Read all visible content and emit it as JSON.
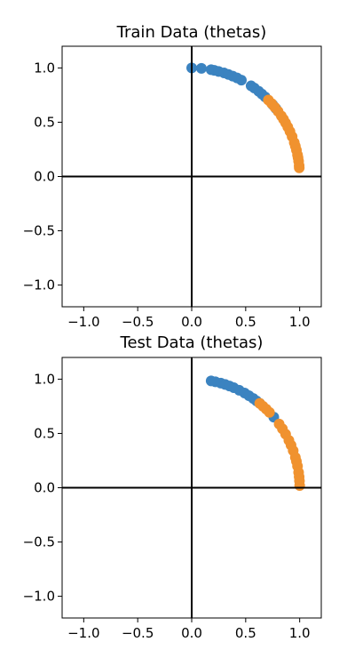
{
  "chart_data": [
    {
      "type": "scatter",
      "title": "Train Data (thetas)",
      "xlabel": "",
      "ylabel": "",
      "xlim": [
        -1.2,
        1.2
      ],
      "ylim": [
        -1.2,
        1.2
      ],
      "xticks": [
        -1.0,
        -0.5,
        0.0,
        0.5,
        1.0
      ],
      "yticks": [
        -1.0,
        -0.5,
        0.0,
        0.5,
        1.0
      ],
      "xtick_labels": [
        "−1.0",
        "−0.5",
        "0.0",
        "0.5",
        "1.0"
      ],
      "ytick_labels": [
        "−1.0",
        "−0.5",
        "0.0",
        "0.5",
        "1.0"
      ],
      "grid": false,
      "reference_lines": {
        "x": 0,
        "y": 0
      },
      "series": [
        {
          "color": "#3b83c0",
          "points": [
            {
              "x": 0.0,
              "y": 1.0
            },
            {
              "x": 0.09,
              "y": 0.996
            },
            {
              "x": 0.18,
              "y": 0.984
            },
            {
              "x": 0.21,
              "y": 0.978
            },
            {
              "x": 0.25,
              "y": 0.968
            },
            {
              "x": 0.3,
              "y": 0.954
            },
            {
              "x": 0.34,
              "y": 0.94
            },
            {
              "x": 0.38,
              "y": 0.925
            },
            {
              "x": 0.42,
              "y": 0.908
            },
            {
              "x": 0.46,
              "y": 0.888
            },
            {
              "x": 0.55,
              "y": 0.835
            },
            {
              "x": 0.58,
              "y": 0.815
            },
            {
              "x": 0.62,
              "y": 0.785
            },
            {
              "x": 0.65,
              "y": 0.76
            },
            {
              "x": 0.68,
              "y": 0.733
            },
            {
              "x": 0.75,
              "y": 0.661
            },
            {
              "x": 0.78,
              "y": 0.626
            }
          ]
        },
        {
          "color": "#f0922f",
          "points": [
            {
              "x": 0.71,
              "y": 0.704
            },
            {
              "x": 0.74,
              "y": 0.673
            },
            {
              "x": 0.77,
              "y": 0.638
            },
            {
              "x": 0.8,
              "y": 0.6
            },
            {
              "x": 0.83,
              "y": 0.558
            },
            {
              "x": 0.85,
              "y": 0.527
            },
            {
              "x": 0.87,
              "y": 0.493
            },
            {
              "x": 0.89,
              "y": 0.456
            },
            {
              "x": 0.91,
              "y": 0.415
            },
            {
              "x": 0.93,
              "y": 0.368
            },
            {
              "x": 0.95,
              "y": 0.312
            },
            {
              "x": 0.96,
              "y": 0.28
            },
            {
              "x": 0.97,
              "y": 0.243
            },
            {
              "x": 0.98,
              "y": 0.199
            },
            {
              "x": 0.985,
              "y": 0.173
            },
            {
              "x": 0.99,
              "y": 0.141
            },
            {
              "x": 0.995,
              "y": 0.1
            },
            {
              "x": 0.996,
              "y": 0.08
            }
          ]
        }
      ]
    },
    {
      "type": "scatter",
      "title": "Test Data (thetas)",
      "xlabel": "",
      "ylabel": "",
      "xlim": [
        -1.2,
        1.2
      ],
      "ylim": [
        -1.2,
        1.2
      ],
      "xticks": [
        -1.0,
        -0.5,
        0.0,
        0.5,
        1.0
      ],
      "yticks": [
        -1.0,
        -0.5,
        0.0,
        0.5,
        1.0
      ],
      "xtick_labels": [
        "−1.0",
        "−0.5",
        "0.0",
        "0.5",
        "1.0"
      ],
      "ytick_labels": [
        "−1.0",
        "−0.5",
        "0.0",
        "0.5",
        "1.0"
      ],
      "grid": false,
      "reference_lines": {
        "x": 0,
        "y": 0
      },
      "series": [
        {
          "color": "#3b83c0",
          "points": [
            {
              "x": 0.18,
              "y": 0.984
            },
            {
              "x": 0.22,
              "y": 0.976
            },
            {
              "x": 0.27,
              "y": 0.963
            },
            {
              "x": 0.31,
              "y": 0.951
            },
            {
              "x": 0.35,
              "y": 0.937
            },
            {
              "x": 0.39,
              "y": 0.921
            },
            {
              "x": 0.44,
              "y": 0.898
            },
            {
              "x": 0.49,
              "y": 0.872
            },
            {
              "x": 0.53,
              "y": 0.848
            },
            {
              "x": 0.57,
              "y": 0.822
            },
            {
              "x": 0.6,
              "y": 0.8
            },
            {
              "x": 0.63,
              "y": 0.777
            },
            {
              "x": 0.76,
              "y": 0.65
            }
          ]
        },
        {
          "color": "#f0922f",
          "points": [
            {
              "x": 0.63,
              "y": 0.777
            },
            {
              "x": 0.66,
              "y": 0.751
            },
            {
              "x": 0.69,
              "y": 0.724
            },
            {
              "x": 0.72,
              "y": 0.694
            },
            {
              "x": 0.81,
              "y": 0.587
            },
            {
              "x": 0.84,
              "y": 0.543
            },
            {
              "x": 0.87,
              "y": 0.493
            },
            {
              "x": 0.9,
              "y": 0.436
            },
            {
              "x": 0.92,
              "y": 0.392
            },
            {
              "x": 0.94,
              "y": 0.341
            },
            {
              "x": 0.96,
              "y": 0.28
            },
            {
              "x": 0.97,
              "y": 0.243
            },
            {
              "x": 0.98,
              "y": 0.199
            },
            {
              "x": 0.99,
              "y": 0.141
            },
            {
              "x": 0.995,
              "y": 0.1
            },
            {
              "x": 0.998,
              "y": 0.063
            },
            {
              "x": 1.0,
              "y": 0.02
            }
          ]
        }
      ]
    }
  ]
}
